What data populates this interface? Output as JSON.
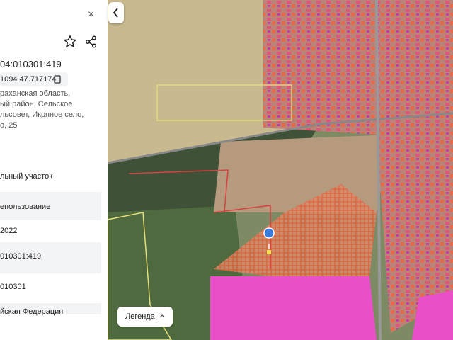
{
  "panel": {
    "cadastral_number": "04:010301:419",
    "coordinates": "1094 47.717174",
    "address_lines": [
      "раханская область,",
      "ый район, Сельское",
      "льсовет, Икряное село,",
      "о, 25"
    ],
    "fields": [
      "льный участок",
      "епользование",
      "2022",
      "010301:419",
      "010301",
      "йская Федерация"
    ]
  },
  "map": {
    "legend_button": "Легенда"
  }
}
